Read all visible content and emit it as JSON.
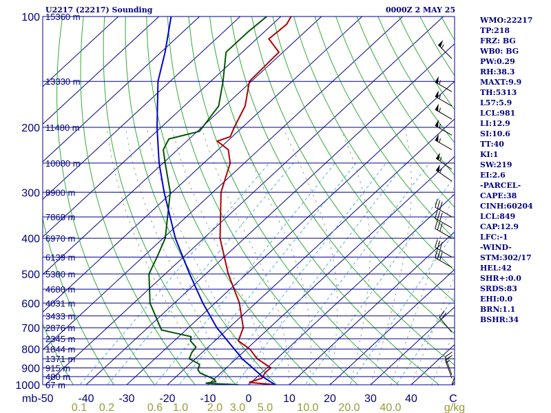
{
  "title": "U2217 (22217) Sounding",
  "valid_time": "0000Z  2 MAY 25",
  "stats": [
    "WMO:22217",
    "TP:218",
    "FRZ: BG",
    "WB0: BG",
    "PW:0.29",
    "RH:38.3",
    "MAXT:9.9",
    "TH:5313",
    "L57:5.9",
    "LCL:981",
    "LI:12.9",
    "SI:10.6",
    "TT:40",
    "KI:1",
    "SW:219",
    "EI:2.6",
    "-PARCEL-",
    "CAPE:38",
    "CINH:60204",
    "LCL:849",
    "CAP:12.9",
    "LFC:-1",
    "-WIND-",
    "STM:302/17",
    "HEL:42",
    "SHR+:0.0",
    "SRDS:83",
    "EHI:0.0",
    "BRN:1.1",
    "BSHR:34"
  ],
  "colors": {
    "isobar": "#00008b",
    "isotherm": "#00008b",
    "dry_adiabat": "#33aa33",
    "moist_adiabat": "#888888",
    "mixing_ratio": "#55aadd",
    "temperature": "#b00000",
    "dewpoint": "#005500",
    "parcel": "#0000cc",
    "axis_text": "#000080",
    "mixing_label": "#999933"
  },
  "chart_data": {
    "type": "line",
    "chart_kind": "skew-T log-P sounding",
    "pressure_axis": {
      "unit": "mb",
      "ticks": [
        100,
        200,
        300,
        400,
        500,
        600,
        700,
        800,
        900,
        1000
      ],
      "range": [
        1000,
        100
      ],
      "scale": "log"
    },
    "temperature_axis": {
      "unit": "C",
      "ticks": [
        -50,
        -40,
        -30,
        -20,
        -10,
        0,
        10,
        20,
        30,
        40
      ],
      "range": [
        -50,
        50
      ]
    },
    "mixing_ratio_axis": {
      "unit": "g/kg",
      "ticks": [
        "0.1",
        "0.2",
        "0.6",
        "1.0",
        "2.0",
        "3.0",
        "5.0",
        "10.0",
        "20.0",
        "40.0"
      ]
    },
    "height_labels": [
      {
        "p": 100,
        "label": "15360 m"
      },
      {
        "p": 150,
        "label": "13330 m"
      },
      {
        "p": 200,
        "label": "11480 m"
      },
      {
        "p": 250,
        "label": "10080 m"
      },
      {
        "p": 300,
        "label": "8900 m"
      },
      {
        "p": 350,
        "label": "7868 m"
      },
      {
        "p": 400,
        "label": "6970 m"
      },
      {
        "p": 450,
        "label": "6139 m"
      },
      {
        "p": 500,
        "label": "5380 m"
      },
      {
        "p": 550,
        "label": "4680 m"
      },
      {
        "p": 600,
        "label": "4031 m"
      },
      {
        "p": 650,
        "label": "3433 m"
      },
      {
        "p": 700,
        "label": "2876 m"
      },
      {
        "p": 750,
        "label": "2345 m"
      },
      {
        "p": 800,
        "label": "1844 m"
      },
      {
        "p": 850,
        "label": "1371 m"
      },
      {
        "p": 900,
        "label": "915 m"
      },
      {
        "p": 950,
        "label": "480 m"
      },
      {
        "p": 1000,
        "label": "67 m"
      }
    ],
    "series": [
      {
        "key": "temperature",
        "points": [
          [
            1000,
            6.5
          ],
          [
            985,
            -0.5
          ],
          [
            960,
            1.5
          ],
          [
            925,
            0.8
          ],
          [
            900,
            1.0
          ],
          [
            850,
            -4.8
          ],
          [
            800,
            -9.2
          ],
          [
            760,
            -14.2
          ],
          [
            700,
            -16.5
          ],
          [
            600,
            -24.0
          ],
          [
            500,
            -34.5
          ],
          [
            400,
            -46.0
          ],
          [
            300,
            -58.0
          ],
          [
            250,
            -63.5
          ],
          [
            230,
            -67.5
          ],
          [
            218,
            -72.5
          ],
          [
            212,
            -70.5
          ],
          [
            200,
            -72.0
          ],
          [
            175,
            -75.0
          ],
          [
            150,
            -80.5
          ],
          [
            125,
            -81.0
          ],
          [
            115,
            -87.0
          ],
          [
            105,
            -86.5
          ],
          [
            100,
            -87.5
          ]
        ]
      },
      {
        "key": "dewpoint",
        "points": [
          [
            1000,
            -2.5
          ],
          [
            990,
            -11.0
          ],
          [
            980,
            -9.0
          ],
          [
            965,
            -10.0
          ],
          [
            930,
            -15.0
          ],
          [
            910,
            -16.5
          ],
          [
            880,
            -17.5
          ],
          [
            850,
            -21.5
          ],
          [
            820,
            -22.5
          ],
          [
            790,
            -23.0
          ],
          [
            760,
            -26.0
          ],
          [
            740,
            -27.0
          ],
          [
            710,
            -36.0
          ],
          [
            600,
            -46.0
          ],
          [
            500,
            -54.0
          ],
          [
            450,
            -56.5
          ],
          [
            400,
            -59.5
          ],
          [
            300,
            -70.5
          ],
          [
            250,
            -79.5
          ],
          [
            230,
            -83.5
          ],
          [
            215,
            -85.0
          ],
          [
            205,
            -79.5
          ],
          [
            175,
            -81.5
          ],
          [
            150,
            -87.0
          ],
          [
            125,
            -94.0
          ],
          [
            110,
            -94.0
          ],
          [
            100,
            -93.5
          ]
        ]
      },
      {
        "key": "parcel",
        "points": [
          [
            1000,
            6.5
          ],
          [
            950,
            1.2
          ],
          [
            900,
            -3.5
          ],
          [
            850,
            -8.5
          ],
          [
            800,
            -13.0
          ],
          [
            700,
            -23.0
          ],
          [
            600,
            -33.0
          ],
          [
            500,
            -44.0
          ],
          [
            400,
            -57.0
          ],
          [
            300,
            -72.0
          ],
          [
            250,
            -81.0
          ],
          [
            200,
            -91.0
          ],
          [
            150,
            -103.0
          ],
          [
            125,
            -109.0
          ],
          [
            100,
            -117.0
          ]
        ]
      }
    ],
    "wind_barbs": [
      {
        "p": 130,
        "dir": 315,
        "spd": 55
      },
      {
        "p": 160,
        "dir": 300,
        "spd": 55
      },
      {
        "p": 175,
        "dir": 300,
        "spd": 55
      },
      {
        "p": 190,
        "dir": 300,
        "spd": 55
      },
      {
        "p": 210,
        "dir": 300,
        "spd": 55
      },
      {
        "p": 230,
        "dir": 300,
        "spd": 55
      },
      {
        "p": 260,
        "dir": 305,
        "spd": 55
      },
      {
        "p": 280,
        "dir": 305,
        "spd": 55
      },
      {
        "p": 350,
        "dir": 300,
        "spd": 30
      },
      {
        "p": 375,
        "dir": 300,
        "spd": 30
      },
      {
        "p": 400,
        "dir": 300,
        "spd": 30
      },
      {
        "p": 450,
        "dir": 300,
        "spd": 30
      },
      {
        "p": 480,
        "dir": 300,
        "spd": 30
      },
      {
        "p": 720,
        "dir": 320,
        "spd": 20
      },
      {
        "p": 940,
        "dir": 340,
        "spd": 15
      },
      {
        "p": 960,
        "dir": 340,
        "spd": 15
      },
      {
        "p": 1000,
        "dir": 20,
        "spd": 10
      }
    ],
    "grid": true
  }
}
